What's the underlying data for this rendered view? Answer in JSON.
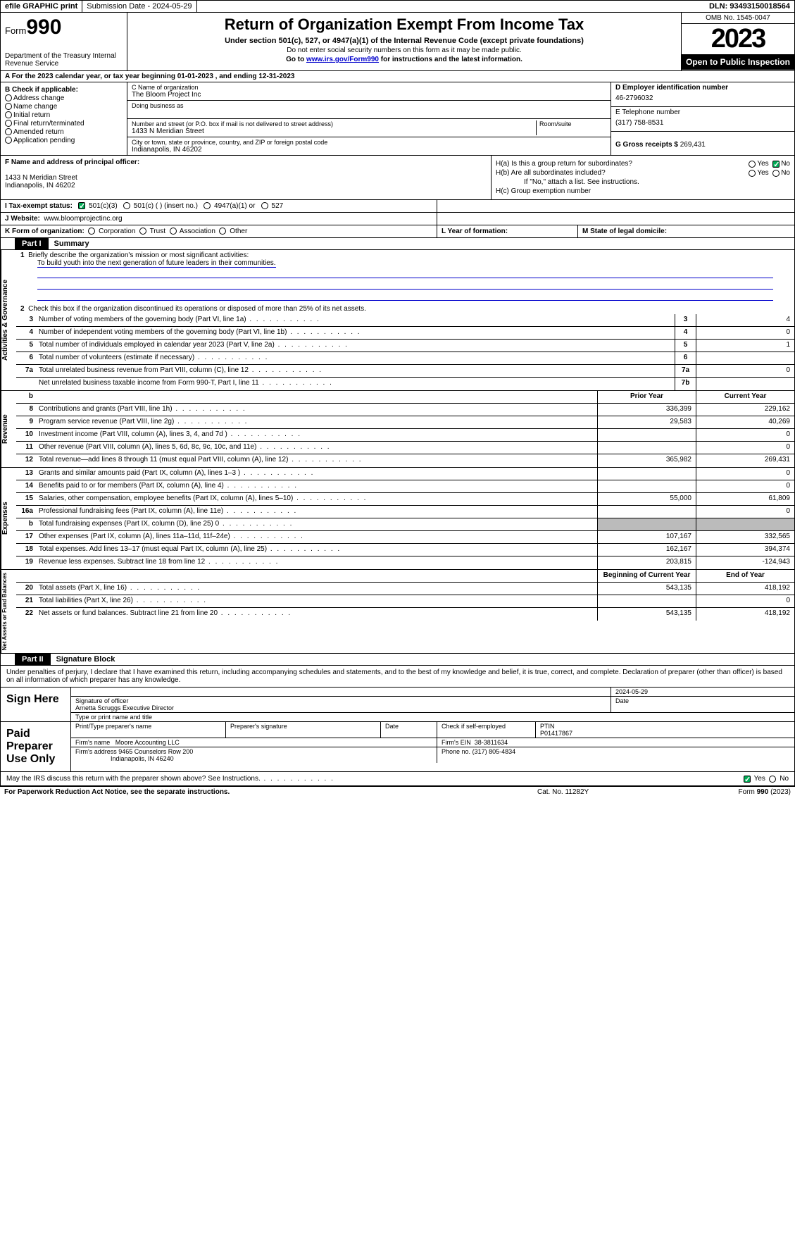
{
  "topbar": {
    "efile": "efile GRAPHIC print",
    "subdate_lbl": "Submission Date - 2024-05-29",
    "dln": "DLN: 93493150018564"
  },
  "header": {
    "form_prefix": "Form",
    "form_num": "990",
    "dept": "Department of the Treasury Internal Revenue Service",
    "title": "Return of Organization Exempt From Income Tax",
    "sub": "Under section 501(c), 527, or 4947(a)(1) of the Internal Revenue Code (except private foundations)",
    "note1": "Do not enter social security numbers on this form as it may be made public.",
    "note2_pre": "Go to ",
    "note2_link": "www.irs.gov/Form990",
    "note2_post": " for instructions and the latest information.",
    "omb": "OMB No. 1545-0047",
    "year": "2023",
    "open": "Open to Public Inspection"
  },
  "row_a": "A For the 2023 calendar year, or tax year beginning 01-01-2023   , and ending 12-31-2023",
  "col_b": {
    "hdr": "B Check if applicable:",
    "items": [
      "Address change",
      "Name change",
      "Initial return",
      "Final return/terminated",
      "Amended return",
      "Application pending"
    ]
  },
  "col_c": {
    "name_lbl": "C Name of organization",
    "name": "The Bloom Project Inc",
    "dba_lbl": "Doing business as",
    "addr_lbl": "Number and street (or P.O. box if mail is not delivered to street address)",
    "room_lbl": "Room/suite",
    "addr": "1433 N Meridian Street",
    "city_lbl": "City or town, state or province, country, and ZIP or foreign postal code",
    "city": "Indianapolis, IN  46202"
  },
  "col_d": {
    "ein_lbl": "D Employer identification number",
    "ein": "46-2796032",
    "tel_lbl": "E Telephone number",
    "tel": "(317) 758-8531",
    "gross_lbl": "G Gross receipts $ ",
    "gross": "269,431"
  },
  "row_f": {
    "lbl": "F Name and address of principal officer:",
    "addr1": "1433 N Meridian Street",
    "addr2": "Indianapolis, IN  46202"
  },
  "row_h": {
    "ha": "H(a)  Is this a group return for subordinates?",
    "hb": "H(b)  Are all subordinates included?",
    "hb_note": "If \"No,\" attach a list. See instructions.",
    "hc": "H(c)  Group exemption number"
  },
  "row_i": {
    "lbl": "I   Tax-exempt status:",
    "opts": [
      "501(c)(3)",
      "501(c) (  ) (insert no.)",
      "4947(a)(1) or",
      "527"
    ]
  },
  "row_j": {
    "lbl": "J   Website:",
    "val": "www.bloomprojectinc.org"
  },
  "row_k": {
    "lbl": "K Form of organization:",
    "opts": [
      "Corporation",
      "Trust",
      "Association",
      "Other"
    ]
  },
  "row_l": "L Year of formation:",
  "row_m": "M State of legal domicile:",
  "part1": {
    "hdr": "Part I",
    "title": "Summary"
  },
  "gov": {
    "l1_lbl": "Briefly describe the organization's mission or most significant activities:",
    "l1_val": "To build youth into the next generation of future leaders in their communities.",
    "l2": "Check this box      if the organization discontinued its operations or disposed of more than 25% of its net assets.",
    "rows": [
      {
        "n": "3",
        "d": "Number of voting members of the governing body (Part VI, line 1a)",
        "b": "3",
        "v": "4"
      },
      {
        "n": "4",
        "d": "Number of independent voting members of the governing body (Part VI, line 1b)",
        "b": "4",
        "v": "0"
      },
      {
        "n": "5",
        "d": "Total number of individuals employed in calendar year 2023 (Part V, line 2a)",
        "b": "5",
        "v": "1"
      },
      {
        "n": "6",
        "d": "Total number of volunteers (estimate if necessary)",
        "b": "6",
        "v": ""
      },
      {
        "n": "7a",
        "d": "Total unrelated business revenue from Part VIII, column (C), line 12",
        "b": "7a",
        "v": "0"
      },
      {
        "n": "",
        "d": "Net unrelated business taxable income from Form 990-T, Part I, line 11",
        "b": "7b",
        "v": ""
      }
    ]
  },
  "rev": {
    "hdr_prior": "Prior Year",
    "hdr_curr": "Current Year",
    "rows": [
      {
        "n": "8",
        "d": "Contributions and grants (Part VIII, line 1h)",
        "p": "336,399",
        "c": "229,162"
      },
      {
        "n": "9",
        "d": "Program service revenue (Part VIII, line 2g)",
        "p": "29,583",
        "c": "40,269"
      },
      {
        "n": "10",
        "d": "Investment income (Part VIII, column (A), lines 3, 4, and 7d )",
        "p": "",
        "c": "0"
      },
      {
        "n": "11",
        "d": "Other revenue (Part VIII, column (A), lines 5, 6d, 8c, 9c, 10c, and 11e)",
        "p": "",
        "c": "0"
      },
      {
        "n": "12",
        "d": "Total revenue—add lines 8 through 11 (must equal Part VIII, column (A), line 12)",
        "p": "365,982",
        "c": "269,431"
      }
    ]
  },
  "exp": {
    "rows": [
      {
        "n": "13",
        "d": "Grants and similar amounts paid (Part IX, column (A), lines 1–3 )",
        "p": "",
        "c": "0"
      },
      {
        "n": "14",
        "d": "Benefits paid to or for members (Part IX, column (A), line 4)",
        "p": "",
        "c": "0"
      },
      {
        "n": "15",
        "d": "Salaries, other compensation, employee benefits (Part IX, column (A), lines 5–10)",
        "p": "55,000",
        "c": "61,809"
      },
      {
        "n": "16a",
        "d": "Professional fundraising fees (Part IX, column (A), line 11e)",
        "p": "",
        "c": "0"
      },
      {
        "n": "b",
        "d": "Total fundraising expenses (Part IX, column (D), line 25) 0",
        "p": "shade",
        "c": "shade"
      },
      {
        "n": "17",
        "d": "Other expenses (Part IX, column (A), lines 11a–11d, 11f–24e)",
        "p": "107,167",
        "c": "332,565"
      },
      {
        "n": "18",
        "d": "Total expenses. Add lines 13–17 (must equal Part IX, column (A), line 25)",
        "p": "162,167",
        "c": "394,374"
      },
      {
        "n": "19",
        "d": "Revenue less expenses. Subtract line 18 from line 12",
        "p": "203,815",
        "c": "-124,943"
      }
    ]
  },
  "net": {
    "hdr_beg": "Beginning of Current Year",
    "hdr_end": "End of Year",
    "rows": [
      {
        "n": "20",
        "d": "Total assets (Part X, line 16)",
        "p": "543,135",
        "c": "418,192"
      },
      {
        "n": "21",
        "d": "Total liabilities (Part X, line 26)",
        "p": "",
        "c": "0"
      },
      {
        "n": "22",
        "d": "Net assets or fund balances. Subtract line 21 from line 20",
        "p": "543,135",
        "c": "418,192"
      }
    ]
  },
  "part2": {
    "hdr": "Part II",
    "title": "Signature Block"
  },
  "sigtext": "Under penalties of perjury, I declare that I have examined this return, including accompanying schedules and statements, and to the best of my knowledge and belief, it is true, correct, and complete. Declaration of preparer (other than officer) is based on all information of which preparer has any knowledge.",
  "sign": {
    "lbl": "Sign Here",
    "date": "2024-05-29",
    "sig_lbl": "Signature of officer",
    "date_lbl": "Date",
    "name": "Arnetta Scruggs  Executive Director",
    "name_lbl": "Type or print name and title"
  },
  "prep": {
    "lbl": "Paid Preparer Use Only",
    "cols": [
      "Print/Type preparer's name",
      "Preparer's signature",
      "Date"
    ],
    "selfemp": "Check       if self-employed",
    "ptin_lbl": "PTIN",
    "ptin": "P01417867",
    "firm_lbl": "Firm's name",
    "firm": "Moore Accounting LLC",
    "fein_lbl": "Firm's EIN",
    "fein": "38-3811634",
    "faddr_lbl": "Firm's address",
    "faddr1": "9465 Counselors Row 200",
    "faddr2": "Indianapolis, IN  46240",
    "phone_lbl": "Phone no.",
    "phone": "(317) 805-4834"
  },
  "discuss": "May the IRS discuss this return with the preparer shown above? See Instructions.",
  "footer": {
    "left": "For Paperwork Reduction Act Notice, see the separate instructions.",
    "mid": "Cat. No. 11282Y",
    "right": "Form 990 (2023)"
  }
}
